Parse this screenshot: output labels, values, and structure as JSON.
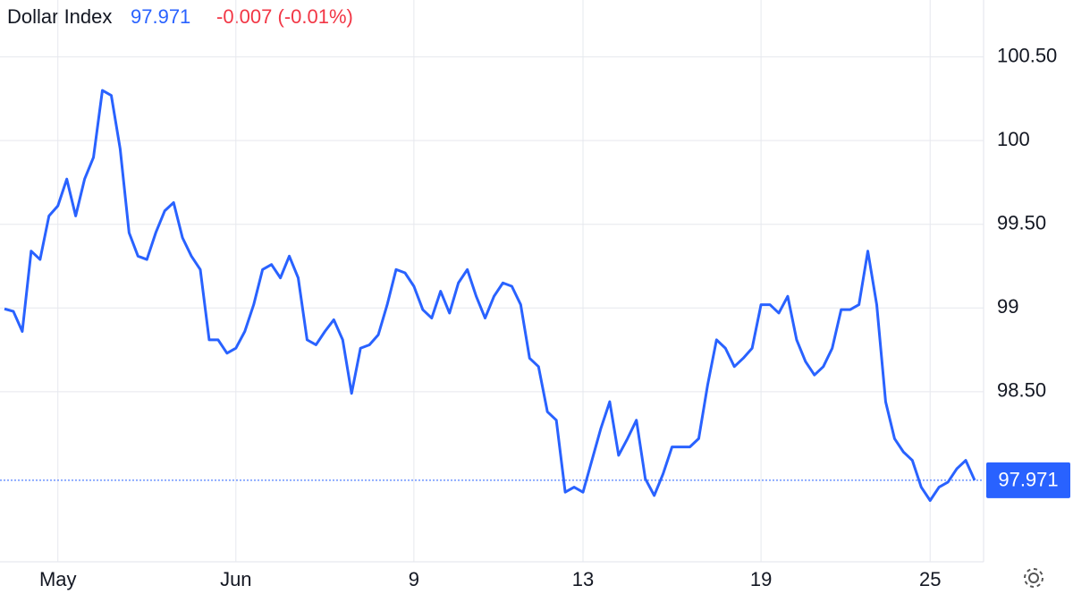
{
  "chart_data": {
    "type": "line",
    "title": "Dollar Index",
    "price": 97.971,
    "change": "-0.007 (-0.01%)",
    "color": "#2962ff",
    "grid": true,
    "categories": [
      null,
      null,
      null,
      null,
      null,
      null,
      "May",
      null,
      null,
      null,
      null,
      null,
      null,
      null,
      null,
      null,
      null,
      null,
      null,
      null,
      null,
      null,
      null,
      null,
      null,
      null,
      "Jun",
      null,
      null,
      null,
      null,
      null,
      null,
      null,
      null,
      null,
      null,
      null,
      null,
      null,
      null,
      null,
      null,
      null,
      null,
      null,
      "9",
      null,
      null,
      null,
      null,
      null,
      null,
      null,
      null,
      null,
      null,
      null,
      null,
      null,
      null,
      null,
      null,
      null,
      null,
      "13",
      null,
      null,
      null,
      null,
      null,
      null,
      null,
      null,
      null,
      null,
      null,
      null,
      null,
      null,
      null,
      null,
      null,
      null,
      null,
      "19",
      null,
      null,
      null,
      null,
      null,
      null,
      null,
      null,
      null,
      null,
      null,
      null,
      null,
      null,
      null,
      null,
      null,
      null,
      "25",
      null,
      null,
      null,
      null,
      null
    ],
    "values": [
      98.995,
      98.98,
      98.86,
      99.34,
      99.29,
      99.55,
      99.61,
      99.77,
      99.55,
      99.77,
      99.9,
      100.3,
      100.27,
      99.95,
      99.45,
      99.31,
      99.29,
      99.45,
      99.58,
      99.63,
      99.42,
      99.31,
      99.23,
      98.81,
      98.81,
      98.73,
      98.76,
      98.86,
      99.02,
      99.23,
      99.26,
      99.18,
      99.31,
      99.18,
      98.81,
      98.78,
      98.86,
      98.93,
      98.81,
      98.49,
      98.76,
      98.78,
      98.84,
      99.02,
      99.23,
      99.21,
      99.13,
      98.99,
      98.94,
      99.1,
      98.97,
      99.15,
      99.23,
      99.07,
      98.94,
      99.07,
      99.15,
      99.13,
      99.02,
      98.7,
      98.65,
      98.38,
      98.33,
      97.9,
      97.93,
      97.9,
      98.09,
      98.28,
      98.44,
      98.12,
      98.22,
      98.33,
      97.98,
      97.88,
      98.01,
      98.17,
      98.17,
      98.17,
      98.22,
      98.54,
      98.81,
      98.76,
      98.65,
      98.7,
      98.76,
      99.02,
      99.02,
      98.97,
      99.07,
      98.81,
      98.68,
      98.6,
      98.65,
      98.76,
      98.99,
      98.99,
      99.02,
      99.34,
      99.02,
      98.44,
      98.22,
      98.14,
      98.09,
      97.93,
      97.85,
      97.93,
      97.96,
      98.04,
      98.09,
      97.971
    ],
    "ylim": [
      97.5,
      100.84
    ],
    "yticks": [
      {
        "value": 98.5,
        "label": "98.50"
      },
      99,
      {
        "value": 99.5,
        "label": "99.50"
      },
      100,
      {
        "value": 100.5,
        "label": "100.50"
      }
    ]
  }
}
